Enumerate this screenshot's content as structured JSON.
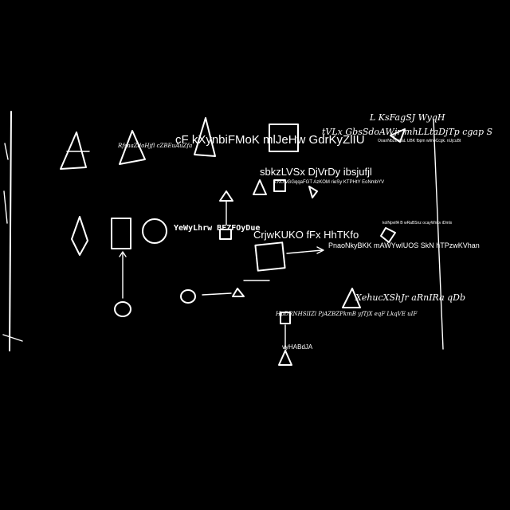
{
  "labels": {
    "top_overlap": "cF kXynbiFMoK mlJeHw GdrKyZlIU",
    "script_top_right": "L KsFagSJ WyqH",
    "script_row_right": "tVLx GbsSdoAWjr mhLLtaDjTp cgap S",
    "tiny_right_1": "OoanNbZeoLaL UBK fbpm wlmoCcgk. nUjcuBt",
    "tiny_left": "RfsaaZdoHjfl cZBEuAuZfa",
    "mid_heading": "sbkzLVSx DjVrDy ibsjufjl",
    "tiny_mid": "ZNUwGGqqaFGT AzKOM rieSy KTPHtY EoNmbYV",
    "circle_label": "YeWyLhrw BEZFOyDue",
    "center_heading": "CrjwKUKO fFx HhTKfo",
    "tiny_right_2": "kolNpvifA B wRaBSnz ocayWnkv iDmlx",
    "right_sentence": "PnaoNkyBKK mAWYwIUOS SkN hTPzwKVhan",
    "script_lower_right": "XehucXShJr aRnIRa qDb",
    "script_bottom": "HpDRNHSIIZl PjAZBZPkmB yfTjX eqF LkqVE uIF",
    "tiny_node": "vyHABdJA"
  }
}
